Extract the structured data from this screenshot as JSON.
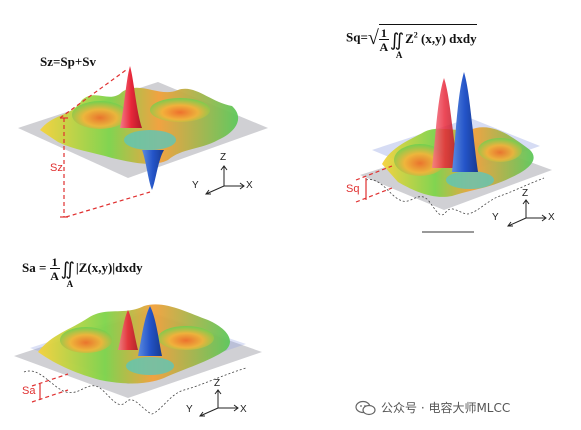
{
  "panel_sz": {
    "formula": "Sz=Sp+Sv",
    "dimension_label": "Sz",
    "axes": {
      "z": "Z",
      "y": "Y",
      "x": "X"
    }
  },
  "panel_sq": {
    "prefix": "Sq=",
    "frac_num": "1",
    "frac_den": "A",
    "region": "A",
    "integrand": "Z",
    "power": "2",
    "tail": " (x,y) dxdy",
    "dimension_label": "Sq",
    "axes": {
      "z": "Z",
      "y": "Y",
      "x": "X"
    }
  },
  "panel_sa": {
    "prefix": "Sa = ",
    "frac_num": "1",
    "frac_den": "A",
    "region": "A",
    "integrand": "|Z(x,y)|",
    "tail": "dxdy",
    "dimension_label": "Sa",
    "axes": {
      "z": "Z",
      "y": "Y",
      "x": "X"
    }
  },
  "watermark": {
    "text": "公众号 · 电容大师MLCC",
    "icon": "wechat-icon"
  },
  "colors": {
    "dimension": "#e03030",
    "plane": "#c8c8cc",
    "peak_red": "#e8283a",
    "valley_blue": "#2454c8"
  }
}
